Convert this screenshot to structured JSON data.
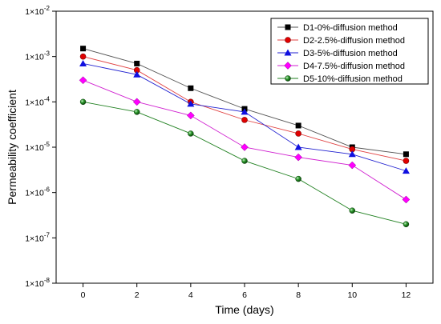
{
  "chart_data": {
    "type": "line",
    "xlabel": "Time (days)",
    "ylabel": "Permeability coefficient",
    "x": [
      0,
      2,
      4,
      6,
      8,
      10,
      12
    ],
    "xlim": [
      -1,
      13
    ],
    "ylim": [
      1e-08,
      0.01
    ],
    "yscale": "log",
    "x_ticks": [
      0,
      2,
      4,
      6,
      8,
      10,
      12
    ],
    "y_ticks": [
      {
        "value": 1e-08,
        "mantissa": "1×10",
        "exponent": "-8"
      },
      {
        "value": 1e-07,
        "mantissa": "1×10",
        "exponent": "-7"
      },
      {
        "value": 1e-06,
        "mantissa": "1×10",
        "exponent": "-6"
      },
      {
        "value": 1e-05,
        "mantissa": "1×10",
        "exponent": "-5"
      },
      {
        "value": 0.0001,
        "mantissa": "1×10",
        "exponent": "-4"
      },
      {
        "value": 0.001,
        "mantissa": "1×10",
        "exponent": "-3"
      },
      {
        "value": 0.01,
        "mantissa": "1×10",
        "exponent": "-2"
      }
    ],
    "grid": false,
    "legend_position": "top-right",
    "series": [
      {
        "name": "D1-0%-diffusion method",
        "marker": "square",
        "line_color": "#555555",
        "marker_color": "#000000",
        "values": [
          0.0015,
          0.0007,
          0.0002,
          7e-05,
          3e-05,
          1e-05,
          7e-06
        ]
      },
      {
        "name": "D2-2.5%-diffusion method",
        "marker": "circle",
        "line_color": "#e04040",
        "marker_color": "#e00000",
        "values": [
          0.001,
          0.0005,
          0.0001,
          4e-05,
          2e-05,
          9e-06,
          5e-06
        ]
      },
      {
        "name": "D3-5%-diffusion method",
        "marker": "triangle",
        "line_color": "#2020d0",
        "marker_color": "#1010e0",
        "values": [
          0.0007,
          0.0004,
          9e-05,
          6e-05,
          1e-05,
          7e-06,
          3e-06
        ]
      },
      {
        "name": "D4-7.5%-diffusion method",
        "marker": "diamond",
        "line_color": "#d020d0",
        "marker_color": "#ff00ff",
        "values": [
          0.0003,
          0.0001,
          5e-05,
          1e-05,
          6e-06,
          4e-06,
          7e-07
        ]
      },
      {
        "name": "D5-10%-diffusion method",
        "marker": "sphere",
        "line_color": "#208020",
        "marker_color": "#1a8a1a",
        "values": [
          0.0001,
          6e-05,
          2e-05,
          5e-06,
          2e-06,
          4e-07,
          2e-07
        ]
      }
    ]
  }
}
